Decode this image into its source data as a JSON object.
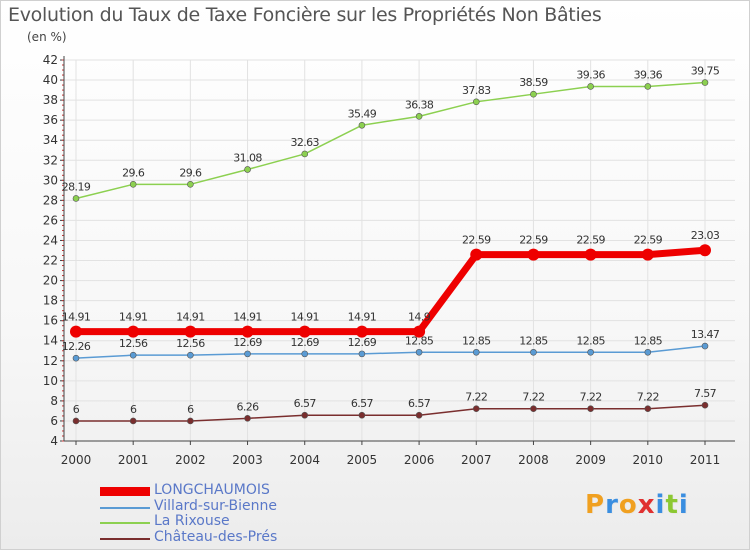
{
  "title": "Evolution du Taux de Taxe Foncière sur les Propriétés Non Bâties",
  "unit_label": "(en %)",
  "logo": {
    "letters": [
      "P",
      "r",
      "o",
      "x",
      "i",
      "t",
      "i"
    ],
    "colors": [
      "#f0a020",
      "#3a8ee0",
      "#f0a020",
      "#e03030",
      "#3a8ee0",
      "#8cc832",
      "#3a8ee0"
    ]
  },
  "chart_data": {
    "type": "line",
    "title": "Evolution du Taux de Taxe Foncière sur les Propriétés Non Bâties",
    "xlabel": "",
    "ylabel": "(en %)",
    "ylim": [
      4,
      42
    ],
    "yticks": [
      4,
      6,
      8,
      10,
      12,
      14,
      16,
      18,
      20,
      22,
      24,
      26,
      28,
      30,
      32,
      34,
      36,
      38,
      40,
      42
    ],
    "categories": [
      "2000",
      "2001",
      "2002",
      "2003",
      "2004",
      "2005",
      "2006",
      "2007",
      "2008",
      "2009",
      "2010",
      "2011"
    ],
    "series": [
      {
        "name": "LONGCHAUMOIS",
        "color": "#ee0000",
        "thick": true,
        "values": [
          14.91,
          14.91,
          14.91,
          14.91,
          14.91,
          14.91,
          14.91,
          22.59,
          22.59,
          22.59,
          22.59,
          23.03
        ],
        "labels": [
          "14.91",
          "14.91",
          "14.91",
          "14.91",
          "14.91",
          "14.91",
          "14.9",
          "22.59",
          "22.59",
          "22.59",
          "22.59",
          "23.03"
        ]
      },
      {
        "name": "Villard-sur-Bienne",
        "color": "#5a9bd4",
        "thick": false,
        "values": [
          12.26,
          12.56,
          12.56,
          12.69,
          12.69,
          12.69,
          12.85,
          12.85,
          12.85,
          12.85,
          12.85,
          13.47
        ],
        "labels": [
          "12.26",
          "12.56",
          "12.56",
          "12.69",
          "12.69",
          "12.69",
          "12.85",
          "12.85",
          "12.85",
          "12.85",
          "12.85",
          "13.47"
        ]
      },
      {
        "name": "La Rixouse",
        "color": "#8cd050",
        "thick": false,
        "values": [
          28.19,
          29.6,
          29.6,
          31.08,
          32.63,
          35.49,
          36.38,
          37.83,
          38.59,
          39.36,
          39.36,
          39.75
        ],
        "labels": [
          "28.19",
          "29.6",
          "29.6",
          "31.08",
          "32.63",
          "35.49",
          "36.38",
          "37.83",
          "38.59",
          "39.36",
          "39.36",
          "39.75"
        ]
      },
      {
        "name": "Château-des-Prés",
        "color": "#7a2e2e",
        "thick": false,
        "values": [
          6,
          6,
          6,
          6.26,
          6.57,
          6.57,
          6.57,
          7.22,
          7.22,
          7.22,
          7.22,
          7.57
        ],
        "labels": [
          "6",
          "6",
          "6",
          "6.26",
          "6.57",
          "6.57",
          "6.57",
          "7.22",
          "7.22",
          "7.22",
          "7.22",
          "7.57"
        ]
      }
    ],
    "legend_position": "bottom-left"
  }
}
